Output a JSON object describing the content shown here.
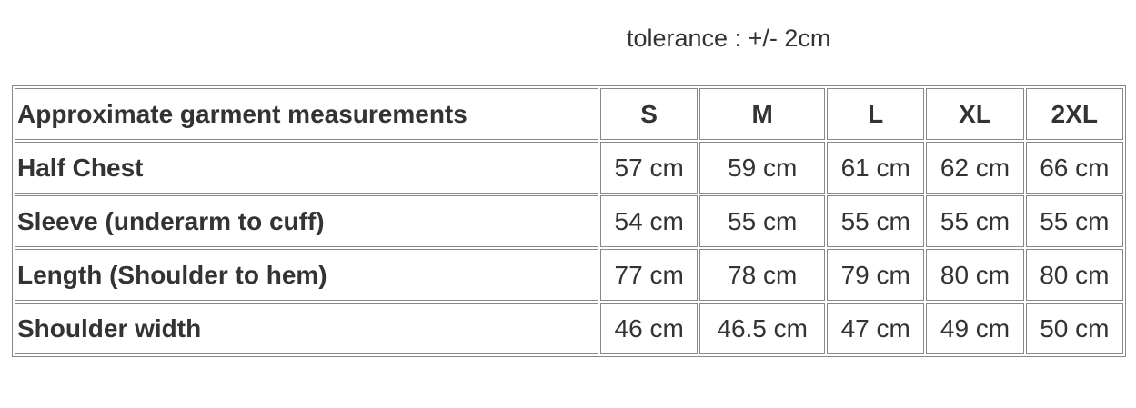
{
  "tolerance": "tolerance : +/- 2cm",
  "table": {
    "header": [
      "Approximate garment measurements",
      "S",
      "M",
      "L",
      "XL",
      "2XL"
    ],
    "rows": [
      [
        "Half Chest",
        "57 cm",
        "59 cm",
        "61 cm",
        "62 cm",
        "66 cm"
      ],
      [
        "Sleeve (underarm to cuff)",
        "54 cm",
        "55 cm",
        "55 cm",
        "55 cm",
        "55 cm"
      ],
      [
        "Length (Shoulder to hem)",
        "77 cm",
        "78 cm",
        "79 cm",
        "80 cm",
        "80 cm"
      ],
      [
        "Shoulder width",
        "46 cm",
        "46.5 cm",
        "47 cm",
        "49 cm",
        "50 cm"
      ]
    ]
  }
}
